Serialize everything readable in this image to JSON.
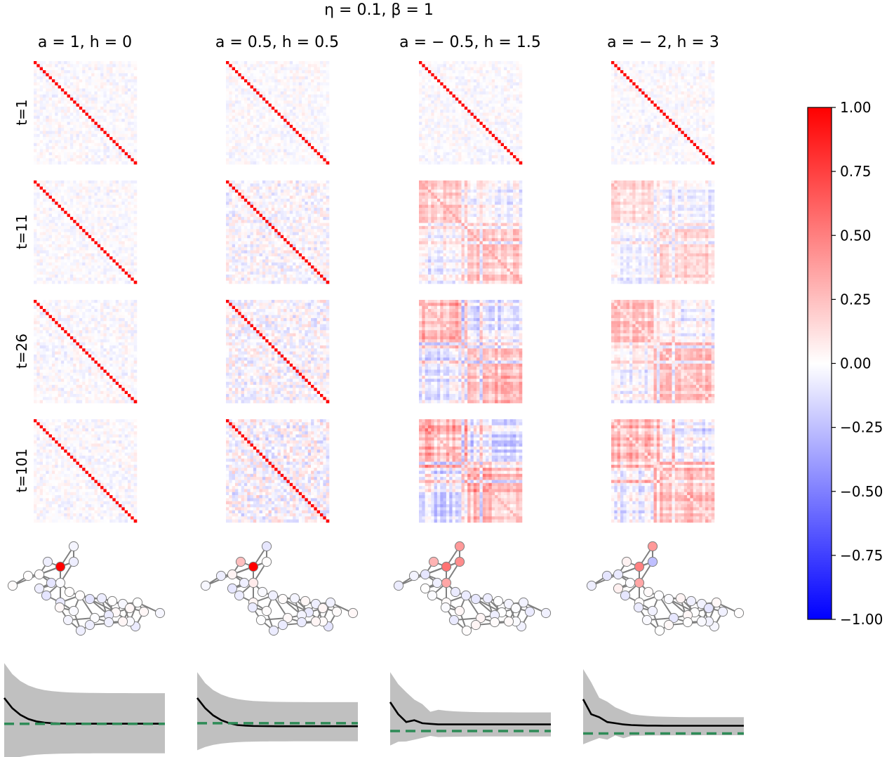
{
  "suptitle": "η = 0.1, β = 1",
  "column_titles": [
    "a = 1, h = 0",
    "a = 0.5, h = 0.5",
    "a = − 0.5, h = 1.5",
    "a = − 2, h = 3"
  ],
  "row_labels": [
    "t=1",
    "t=11",
    "t=26",
    "t=101"
  ],
  "colorbar": {
    "colormap": "bwr",
    "min": -1.0,
    "max": 1.0,
    "ticks": [
      "1.00",
      "0.75",
      "0.50",
      "0.25",
      "0.00",
      "−0.25",
      "−0.50",
      "−0.75",
      "−1.00"
    ],
    "low_color": "#0000ff",
    "mid_color": "#ffffff",
    "high_color": "#ff0000"
  },
  "chart_data": [
    {
      "type": "heatmap",
      "description_of_grid": "4x4 grid of 34x34 correlation matrices (rows = t, columns = parameter settings)",
      "matrix_size": 34,
      "value_range": [
        -1,
        1
      ],
      "columns": [
        "a = 1, h = 0",
        "a = 0.5, h = 0.5",
        "a = − 0.5, h = 1.5",
        "a = − 2, h = 3"
      ],
      "rows": [
        "t=1",
        "t=11",
        "t=26",
        "t=101"
      ],
      "diagonal_value": [
        [
          1.0,
          1.0,
          1.0,
          1.0
        ],
        [
          1.0,
          1.0,
          0.35,
          0.1
        ],
        [
          1.0,
          1.0,
          0.3,
          0.1
        ],
        [
          1.0,
          1.0,
          0.3,
          0.1
        ]
      ],
      "offdiagonal_structure_strength": [
        [
          0.03,
          0.03,
          0.03,
          0.03
        ],
        [
          0.03,
          0.08,
          0.3,
          0.25
        ],
        [
          0.04,
          0.1,
          0.45,
          0.35
        ],
        [
          0.04,
          0.12,
          0.5,
          0.4
        ]
      ]
    },
    {
      "type": "network",
      "node_count": 34,
      "highlighted_node_value": [
        1.0,
        1.0,
        0.55,
        0.5
      ]
    },
    {
      "type": "line",
      "panels": [
        {
          "mean": [
            0.62,
            0.45,
            0.34,
            0.27,
            0.23,
            0.21,
            0.2,
            0.195,
            0.193,
            0.192,
            0.192,
            0.192,
            0.192,
            0.192,
            0.192,
            0.192,
            0.192,
            0.192,
            0.192,
            0.192,
            0.192
          ],
          "band_upper": 0.7,
          "band_lower": -0.3,
          "band_peak": 1.2,
          "reference": 0.19
        },
        {
          "mean": [
            0.62,
            0.45,
            0.33,
            0.25,
            0.2,
            0.17,
            0.16,
            0.155,
            0.152,
            0.151,
            0.15,
            0.15,
            0.15,
            0.15,
            0.15,
            0.15,
            0.15,
            0.15,
            0.15,
            0.15,
            0.15
          ],
          "band_upper": 0.55,
          "band_lower": -0.1,
          "band_peak": 1.05,
          "reference": 0.2
        },
        {
          "mean": [
            0.55,
            0.35,
            0.22,
            0.25,
            0.2,
            0.19,
            0.18,
            0.18,
            0.18,
            0.18,
            0.18,
            0.18,
            0.18,
            0.18,
            0.18,
            0.18,
            0.18,
            0.18,
            0.18,
            0.18,
            0.18
          ],
          "band_upper": 0.38,
          "band_lower": -0.02,
          "band_peak": 1.05,
          "reference": 0.07
        },
        {
          "mean": [
            0.6,
            0.35,
            0.3,
            0.22,
            0.2,
            0.18,
            0.17,
            0.165,
            0.16,
            0.16,
            0.158,
            0.158,
            0.158,
            0.158,
            0.158,
            0.158,
            0.158,
            0.158,
            0.158,
            0.158,
            0.158
          ],
          "band_upper": 0.3,
          "band_lower": 0.0,
          "band_peak": 1.1,
          "reference": 0.03
        }
      ],
      "mean_color": "#000000",
      "band_color": "#c0c0c0",
      "reference_color": "#2e8b57"
    }
  ]
}
